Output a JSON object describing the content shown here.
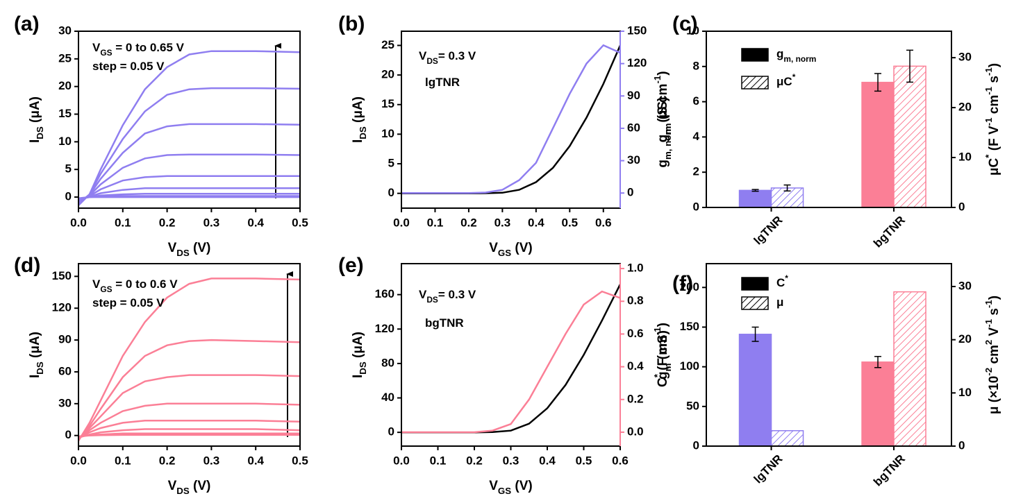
{
  "chart_data": [
    {
      "type": "line",
      "label": "(a)",
      "annotations": [
        {
          "parts": [
            {
              "text": "V"
            },
            {
              "text": "GS",
              "pos": "sub"
            },
            {
              "text": " = 0 to 0.65 V"
            }
          ]
        },
        {
          "parts": [
            {
              "text": "step = 0.05 V"
            }
          ]
        }
      ],
      "x_label": [
        {
          "text": "V"
        },
        {
          "text": "DS",
          "pos": "sub"
        },
        {
          "text": " (V)"
        }
      ],
      "y_label": [
        {
          "text": "I"
        },
        {
          "text": "DS",
          "pos": "sub"
        },
        {
          "text": " (μA)"
        }
      ],
      "xlim": [
        0,
        0.5
      ],
      "ylim": [
        -2,
        30
      ],
      "xticks": [
        {
          "value": 0,
          "label": "0.0"
        },
        {
          "value": 0.1,
          "label": "0.1"
        },
        {
          "value": 0.2,
          "label": "0.2"
        },
        {
          "value": 0.3,
          "label": "0.3"
        },
        {
          "value": 0.4,
          "label": "0.4"
        },
        {
          "value": 0.5,
          "label": "0.5"
        }
      ],
      "yticks": [
        0,
        5,
        10,
        15,
        20,
        25,
        30
      ],
      "x": [
        0,
        0.025,
        0.05,
        0.1,
        0.15,
        0.2,
        0.25,
        0.3,
        0.4,
        0.5
      ],
      "series": [
        {
          "color": "#8f7ef0",
          "values": [
            -1.5,
            0.5,
            5,
            13,
            19.5,
            23.5,
            25.8,
            26.4,
            26.4,
            26.2
          ]
        },
        {
          "color": "#8f7ef0",
          "values": [
            -1.2,
            0.5,
            4.2,
            10.5,
            15.5,
            18.5,
            19.5,
            19.7,
            19.7,
            19.6
          ]
        },
        {
          "color": "#8f7ef0",
          "values": [
            -1,
            0.4,
            3.3,
            8,
            11.5,
            12.8,
            13.2,
            13.2,
            13.2,
            13.1
          ]
        },
        {
          "color": "#8f7ef0",
          "values": [
            -0.8,
            0.3,
            2.3,
            5.3,
            7,
            7.6,
            7.7,
            7.7,
            7.7,
            7.6
          ]
        },
        {
          "color": "#8f7ef0",
          "values": [
            -0.6,
            0.2,
            1.4,
            3,
            3.6,
            3.8,
            3.8,
            3.8,
            3.8,
            3.8
          ]
        },
        {
          "color": "#8f7ef0",
          "values": [
            -0.5,
            0.1,
            0.7,
            1.3,
            1.6,
            1.6,
            1.6,
            1.6,
            1.6,
            1.6
          ]
        },
        {
          "color": "#8f7ef0",
          "values": [
            -0.4,
            0,
            0.3,
            0.5,
            0.6,
            0.6,
            0.6,
            0.6,
            0.6,
            0.6
          ]
        },
        {
          "color": "#8f7ef0",
          "values": [
            -0.3,
            0,
            0.1,
            0.2,
            0.2,
            0.2,
            0.2,
            0.2,
            0.2,
            0.2
          ]
        },
        {
          "color": "#8f7ef0",
          "values": [
            -0.2,
            0,
            0,
            0,
            0,
            0,
            0,
            0,
            0,
            0
          ]
        }
      ]
    },
    {
      "type": "line",
      "label": "(b)",
      "annotations": [
        {
          "parts": [
            {
              "text": "V"
            },
            {
              "text": "DS",
              "pos": "sub"
            },
            {
              "text": "= 0.3 V"
            }
          ]
        },
        {
          "parts": [
            {
              "text": "lgTNR"
            }
          ],
          "color": "#8f7ef0"
        }
      ],
      "x_label": [
        {
          "text": "V"
        },
        {
          "text": "GS",
          "pos": "sub"
        },
        {
          "text": " (V)"
        }
      ],
      "y_label": [
        {
          "text": "I"
        },
        {
          "text": "DS",
          "pos": "sub"
        },
        {
          "text": " (μA)"
        }
      ],
      "y2_label": [
        {
          "text": "g"
        },
        {
          "text": "m",
          "pos": "sub"
        },
        {
          "text": " (μS)"
        }
      ],
      "y2_color": "#8f7ef0",
      "xlim": [
        0,
        0.65
      ],
      "ylim": [
        -2.5,
        27.4
      ],
      "y2lim": [
        -14,
        150
      ],
      "xticks": [
        {
          "value": 0,
          "label": "0.0"
        },
        {
          "value": 0.1,
          "label": "0.1"
        },
        {
          "value": 0.2,
          "label": "0.2"
        },
        {
          "value": 0.3,
          "label": "0.3"
        },
        {
          "value": 0.4,
          "label": "0.4"
        },
        {
          "value": 0.5,
          "label": "0.5"
        },
        {
          "value": 0.6,
          "label": "0.6"
        }
      ],
      "yticks": [
        0,
        5,
        10,
        15,
        20,
        25
      ],
      "y2ticks": [
        0,
        30,
        60,
        90,
        120,
        150
      ],
      "x": [
        0,
        0.1,
        0.2,
        0.25,
        0.3,
        0.35,
        0.4,
        0.45,
        0.5,
        0.55,
        0.6,
        0.65
      ],
      "series": [
        {
          "color": "#000000",
          "values": [
            0,
            0,
            0,
            0.02,
            0.1,
            0.6,
            1.9,
            4.3,
            8,
            12.8,
            18.5,
            25
          ]
        },
        {
          "color": "#8f7ef0",
          "axis": "y2",
          "values": [
            0,
            0,
            0,
            0.5,
            3,
            12,
            28,
            60,
            92,
            120,
            137,
            130
          ]
        }
      ]
    },
    {
      "type": "bar",
      "label": "(c)",
      "categories": [
        "lgTNR",
        "bgTNR"
      ],
      "colors": [
        "#8f7ef0",
        "#fb7f96"
      ],
      "legend_color": "#000000",
      "y_label": [
        {
          "text": "g"
        },
        {
          "text": "m, norm",
          "pos": "sub"
        },
        {
          "text": " (S cm"
        },
        {
          "text": "-1",
          "pos": "sup"
        },
        {
          "text": ")"
        }
      ],
      "y2_label": [
        {
          "text": "μC"
        },
        {
          "text": "*",
          "pos": "sup"
        },
        {
          "text": " (F V"
        },
        {
          "text": "-1",
          "pos": "sup"
        },
        {
          "text": " cm"
        },
        {
          "text": "-1",
          "pos": "sup"
        },
        {
          "text": " s"
        },
        {
          "text": "-1",
          "pos": "sup"
        },
        {
          "text": ")"
        }
      ],
      "ylim": [
        0,
        10
      ],
      "y2lim": [
        0,
        35.3
      ],
      "yticks": [
        0,
        2,
        4,
        6,
        8,
        10
      ],
      "y2ticks": [
        0,
        10,
        20,
        30
      ],
      "series": [
        {
          "name": [
            {
              "text": "g"
            },
            {
              "text": "m, norm",
              "pos": "sub"
            }
          ],
          "style": "solid",
          "values": [
            0.97,
            7.1
          ],
          "errors": [
            0.05,
            0.5
          ]
        },
        {
          "name": [
            {
              "text": "μC"
            },
            {
              "text": "*",
              "pos": "sup"
            }
          ],
          "style": "hatched",
          "axis": "y2",
          "values": [
            3.9,
            28.3
          ],
          "errors": [
            0.6,
            3.2
          ]
        }
      ]
    },
    {
      "type": "line",
      "label": "(d)",
      "annotations": [
        {
          "parts": [
            {
              "text": "V"
            },
            {
              "text": "GS",
              "pos": "sub"
            },
            {
              "text": " = 0 to 0.6 V"
            }
          ]
        },
        {
          "parts": [
            {
              "text": "step = 0.05 V"
            }
          ]
        }
      ],
      "x_label": [
        {
          "text": "V"
        },
        {
          "text": "DS",
          "pos": "sub"
        },
        {
          "text": " (V)"
        }
      ],
      "y_label": [
        {
          "text": "I"
        },
        {
          "text": "DS",
          "pos": "sub"
        },
        {
          "text": " (μA)"
        }
      ],
      "xlim": [
        0,
        0.5
      ],
      "ylim": [
        -10,
        162
      ],
      "xticks": [
        {
          "value": 0,
          "label": "0.0"
        },
        {
          "value": 0.1,
          "label": "0.1"
        },
        {
          "value": 0.2,
          "label": "0.2"
        },
        {
          "value": 0.3,
          "label": "0.3"
        },
        {
          "value": 0.4,
          "label": "0.4"
        },
        {
          "value": 0.5,
          "label": "0.5"
        }
      ],
      "yticks": [
        0,
        30,
        60,
        90,
        120,
        150
      ],
      "x": [
        0,
        0.025,
        0.05,
        0.1,
        0.15,
        0.2,
        0.25,
        0.3,
        0.4,
        0.5
      ],
      "series": [
        {
          "color": "#fb7f96",
          "values": [
            -5,
            12,
            33,
            75,
            107,
            130,
            143,
            148,
            148,
            147
          ]
        },
        {
          "color": "#fb7f96",
          "values": [
            -4,
            9,
            25,
            55,
            75,
            85,
            89,
            90,
            89,
            88
          ]
        },
        {
          "color": "#fb7f96",
          "values": [
            -3,
            7,
            18,
            40,
            51,
            55,
            57,
            57,
            57,
            56
          ]
        },
        {
          "color": "#fb7f96",
          "values": [
            -3,
            5,
            12,
            23,
            28,
            30,
            30,
            30,
            30,
            29
          ]
        },
        {
          "color": "#fb7f96",
          "values": [
            -2,
            3,
            7,
            12,
            14,
            14,
            14,
            14,
            14,
            13
          ]
        },
        {
          "color": "#fb7f96",
          "values": [
            -2,
            1,
            3,
            5,
            6,
            6,
            6,
            6,
            6,
            5
          ]
        },
        {
          "color": "#fb7f96",
          "values": [
            -1,
            0.5,
            1,
            2,
            2,
            2,
            2,
            2,
            2,
            2
          ]
        },
        {
          "color": "#fb7f96",
          "values": [
            -1,
            0,
            0.3,
            0.5,
            0.5,
            0.5,
            0.5,
            0.5,
            0.5,
            0.5
          ]
        }
      ]
    },
    {
      "type": "line",
      "label": "(e)",
      "annotations": [
        {
          "parts": [
            {
              "text": "V"
            },
            {
              "text": "DS",
              "pos": "sub"
            },
            {
              "text": "= 0.3 V"
            }
          ]
        },
        {
          "parts": [
            {
              "text": "bgTNR"
            }
          ],
          "color": "#fb7f96"
        }
      ],
      "x_label": [
        {
          "text": "V"
        },
        {
          "text": "GS",
          "pos": "sub"
        },
        {
          "text": " (V)"
        }
      ],
      "y_label": [
        {
          "text": "I"
        },
        {
          "text": "DS",
          "pos": "sub"
        },
        {
          "text": " (μA)"
        }
      ],
      "y2_label": [
        {
          "text": "g"
        },
        {
          "text": "m",
          "pos": "sub"
        },
        {
          "text": " (mS)"
        }
      ],
      "y2_color": "#fb7f96",
      "xlim": [
        0,
        0.6
      ],
      "ylim": [
        -16,
        196
      ],
      "y2lim": [
        -0.085,
        1.03
      ],
      "xticks": [
        {
          "value": 0,
          "label": "0.0"
        },
        {
          "value": 0.1,
          "label": "0.1"
        },
        {
          "value": 0.2,
          "label": "0.2"
        },
        {
          "value": 0.3,
          "label": "0.3"
        },
        {
          "value": 0.4,
          "label": "0.4"
        },
        {
          "value": 0.5,
          "label": "0.5"
        },
        {
          "value": 0.6,
          "label": "0.6"
        }
      ],
      "yticks": [
        0,
        40,
        80,
        120,
        160
      ],
      "y2ticks": [
        {
          "value": 0,
          "label": "0.0"
        },
        {
          "value": 0.2,
          "label": "0.2"
        },
        {
          "value": 0.4,
          "label": "0.4"
        },
        {
          "value": 0.6,
          "label": "0.6"
        },
        {
          "value": 0.8,
          "label": "0.8"
        },
        {
          "value": 1,
          "label": "1.0"
        }
      ],
      "x": [
        0,
        0.1,
        0.2,
        0.25,
        0.3,
        0.35,
        0.4,
        0.45,
        0.5,
        0.55,
        0.6
      ],
      "series": [
        {
          "color": "#000000",
          "values": [
            0,
            0,
            0,
            0.3,
            2,
            10,
            28,
            55,
            90,
            130,
            172
          ]
        },
        {
          "color": "#fb7f96",
          "axis": "y2",
          "values": [
            0,
            0,
            0,
            0.01,
            0.05,
            0.2,
            0.4,
            0.6,
            0.78,
            0.86,
            0.82
          ]
        }
      ]
    },
    {
      "type": "bar",
      "label": "(f)",
      "categories": [
        "lgTNR",
        "bgTNR"
      ],
      "colors": [
        "#8f7ef0",
        "#fb7f96"
      ],
      "legend_color": "#000000",
      "y_label": [
        {
          "text": "C"
        },
        {
          "text": "*",
          "pos": "sup"
        },
        {
          "text": " (F cm"
        },
        {
          "text": "-1",
          "pos": "sup"
        },
        {
          "text": ")"
        }
      ],
      "y2_label": [
        {
          "text": "μ (×10"
        },
        {
          "text": "-2",
          "pos": "sup"
        },
        {
          "text": " cm"
        },
        {
          "text": "2",
          "pos": "sup"
        },
        {
          "text": " V"
        },
        {
          "text": "-1",
          "pos": "sup"
        },
        {
          "text": " s"
        },
        {
          "text": "-1",
          "pos": "sup"
        },
        {
          "text": ")"
        }
      ],
      "ylim": [
        0,
        230
      ],
      "y2lim": [
        0,
        34.3
      ],
      "yticks": [
        0,
        50,
        100,
        150,
        200
      ],
      "y2ticks": [
        0,
        10,
        20,
        30
      ],
      "series": [
        {
          "name": [
            {
              "text": "C"
            },
            {
              "text": "*",
              "pos": "sup"
            }
          ],
          "style": "solid",
          "values": [
            141,
            106
          ],
          "errors": [
            9,
            7
          ]
        },
        {
          "name": [
            {
              "text": "μ"
            }
          ],
          "style": "hatched",
          "axis": "y2",
          "values": [
            2.9,
            29.0
          ]
        }
      ]
    }
  ]
}
